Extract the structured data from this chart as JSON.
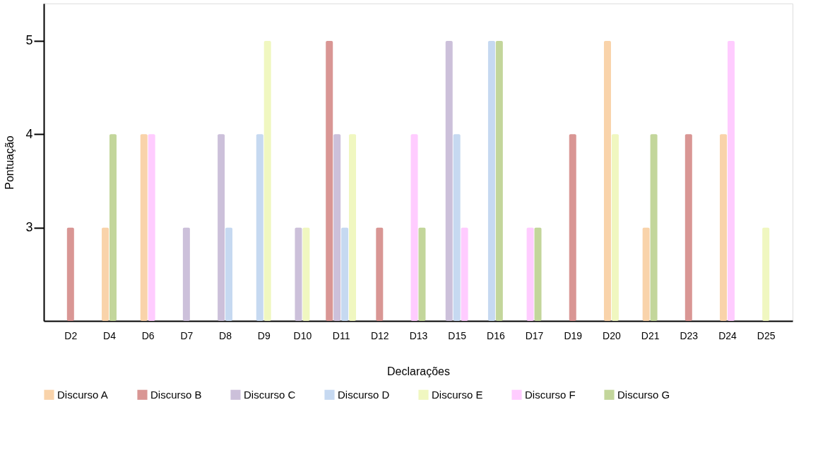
{
  "chart_data": {
    "type": "bar",
    "xlabel": "Declarações",
    "ylabel": "Pontuação",
    "categories": [
      "D2",
      "D4",
      "D6",
      "D7",
      "D8",
      "D9",
      "D10",
      "D11",
      "D12",
      "D13",
      "D15",
      "D16",
      "D17",
      "D19",
      "D20",
      "D21",
      "D23",
      "D24",
      "D25"
    ],
    "ylim": [
      2,
      5.4
    ],
    "yticks": [
      3,
      4,
      5
    ],
    "grid": false,
    "legend": "bottom",
    "series": [
      {
        "name": "Discurso A",
        "color": "#f9d3aa",
        "values": [
          null,
          3,
          4,
          null,
          null,
          null,
          null,
          null,
          null,
          null,
          null,
          null,
          null,
          null,
          5,
          3,
          null,
          4,
          null
        ]
      },
      {
        "name": "Discurso B",
        "color": "#d99694",
        "values": [
          3,
          null,
          null,
          null,
          null,
          null,
          null,
          5,
          3,
          null,
          null,
          null,
          null,
          4,
          null,
          null,
          4,
          null,
          null
        ]
      },
      {
        "name": "Discurso C",
        "color": "#ccc0da",
        "values": [
          null,
          null,
          null,
          3,
          4,
          null,
          3,
          4,
          null,
          null,
          5,
          null,
          null,
          null,
          null,
          null,
          null,
          null,
          null
        ]
      },
      {
        "name": "Discurso D",
        "color": "#c6d9f1",
        "values": [
          null,
          null,
          null,
          null,
          3,
          4,
          null,
          3,
          null,
          null,
          4,
          5,
          null,
          null,
          null,
          null,
          null,
          null,
          null
        ]
      },
      {
        "name": "Discurso E",
        "color": "#f0f7c0",
        "values": [
          null,
          null,
          null,
          null,
          null,
          5,
          3,
          4,
          null,
          null,
          null,
          null,
          null,
          null,
          4,
          null,
          null,
          null,
          3
        ]
      },
      {
        "name": "Discurso F",
        "color": "#ffccff",
        "values": [
          null,
          null,
          4,
          null,
          null,
          null,
          null,
          null,
          null,
          4,
          3,
          null,
          3,
          null,
          null,
          null,
          null,
          5,
          null
        ]
      },
      {
        "name": "Discurso G",
        "color": "#c3d69b",
        "values": [
          null,
          4,
          null,
          null,
          null,
          null,
          null,
          null,
          null,
          3,
          null,
          5,
          3,
          null,
          null,
          4,
          null,
          null,
          null
        ]
      }
    ]
  }
}
